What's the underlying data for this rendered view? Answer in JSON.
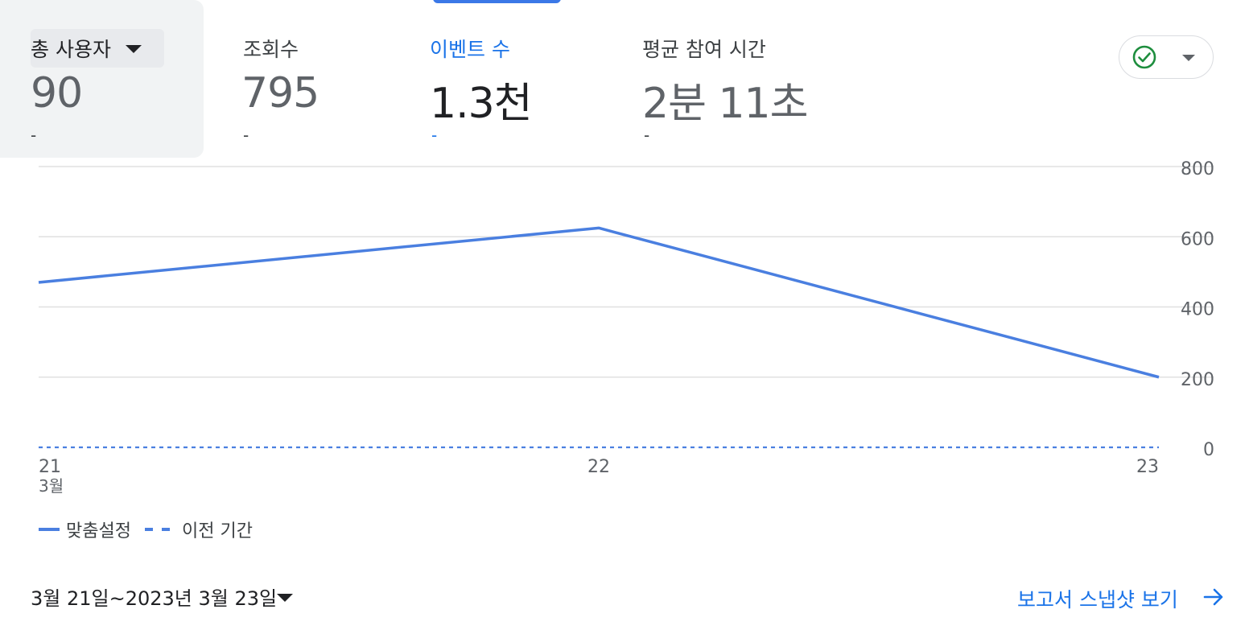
{
  "metrics": [
    {
      "title": "총 사용자",
      "value": "90",
      "delta": "-"
    },
    {
      "title": "조회수",
      "value": "795",
      "delta": "-"
    },
    {
      "title": "이벤트 수",
      "value": "1.3천",
      "delta": "-"
    },
    {
      "title": "평균 참여 시간",
      "value": "2분 11초",
      "delta": "-"
    }
  ],
  "colors": {
    "accent": "#1a73e8",
    "series": "#4a7fe0",
    "grid": "#e0e0e0",
    "check": "#1e8e3e"
  },
  "icons": {
    "status": "check-circle-icon",
    "metric_dropdown": "caret-down-icon",
    "link_arrow": "arrow-right-icon"
  },
  "chart_data": {
    "type": "line",
    "x": [
      "21",
      "22",
      "23"
    ],
    "x_month_label": "3월",
    "ylim": [
      0,
      800
    ],
    "yticks": [
      "800",
      "600",
      "400",
      "200",
      "0"
    ],
    "ytick_values": [
      800,
      600,
      400,
      200,
      0
    ],
    "grid": true,
    "series": [
      {
        "name": "맞춤설정",
        "values": [
          470,
          625,
          200
        ],
        "style": "solid"
      },
      {
        "name": "이전 기간",
        "values": [
          0,
          0,
          0
        ],
        "style": "dashed"
      }
    ],
    "legend_position": "bottom-left"
  },
  "footer": {
    "date_range": "3월 21일~2023년 3월 23일",
    "snapshot_link": "보고서 스냅샷 보기"
  }
}
